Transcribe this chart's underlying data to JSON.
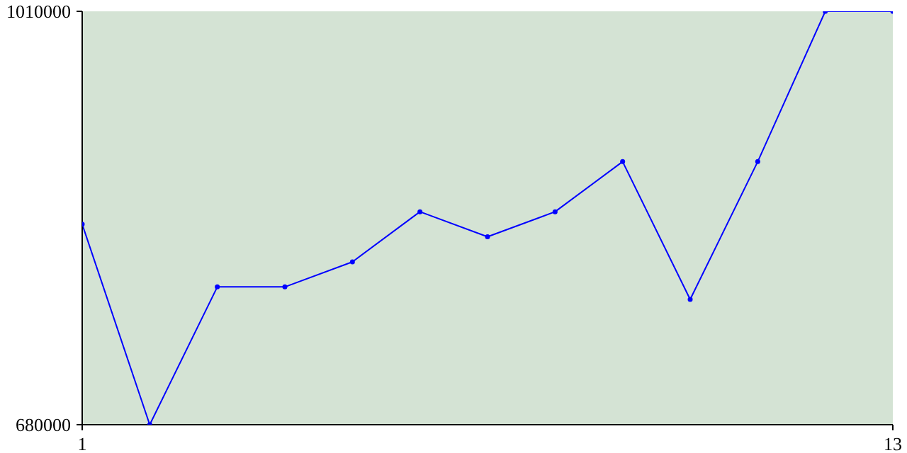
{
  "chart_data": {
    "type": "line",
    "x": [
      1,
      2,
      3,
      4,
      5,
      6,
      7,
      8,
      9,
      10,
      11,
      12,
      13
    ],
    "series": [
      {
        "color": "#0000ff",
        "values": [
          840000,
          680000,
          790000,
          790000,
          810000,
          850000,
          830000,
          850000,
          890000,
          780000,
          890000,
          1010000,
          1010000
        ]
      }
    ],
    "xlim": [
      1,
      13
    ],
    "xticks": [
      1,
      13
    ],
    "ylim": [
      680000,
      1010000
    ],
    "yticks": [
      680000,
      1010000
    ],
    "marker": "circle",
    "line_style": "solid",
    "grid": false
  }
}
